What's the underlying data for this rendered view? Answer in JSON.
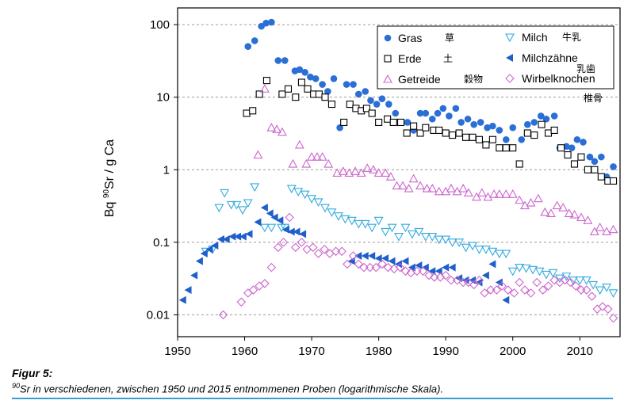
{
  "chart_data": {
    "type": "scatter",
    "title": "",
    "xlabel": "",
    "ylabel_parts": {
      "pre": "Bq ",
      "sup": "90",
      "post": "Sr / g Ca"
    },
    "y_scale": "log",
    "xlim": [
      1950,
      2016
    ],
    "ylim": [
      0.005,
      170
    ],
    "x_ticks": [
      1950,
      1960,
      1970,
      1980,
      1990,
      2000,
      2010
    ],
    "y_ticks": [
      {
        "value": 0.01,
        "label": "0.01"
      },
      {
        "value": 0.1,
        "label": "0.1"
      },
      {
        "value": 1,
        "label": "1"
      },
      {
        "value": 10,
        "label": "10"
      },
      {
        "value": 100,
        "label": "100"
      }
    ],
    "grid": "horizontal dashed",
    "legend_position": "top-right",
    "series": [
      {
        "key": "gras",
        "name": "Gras",
        "name_cjk": "草",
        "marker": "circle",
        "color": "#2b6fd6",
        "x": [
          1960.5,
          1961.5,
          1962.5,
          1963.2,
          1964.0,
          1965.0,
          1966.0,
          1967.5,
          1968.2,
          1969.0,
          1969.8,
          1970.6,
          1971.6,
          1972.4,
          1973.3,
          1974.2,
          1975.2,
          1976.2,
          1977.0,
          1978.0,
          1978.8,
          1979.7,
          1980.5,
          1981.5,
          1982.5,
          1983.5,
          1984.3,
          1985.2,
          1986.2,
          1987.0,
          1988.0,
          1988.8,
          1989.6,
          1990.5,
          1991.5,
          1992.3,
          1993.3,
          1994.2,
          1995.2,
          1996.2,
          1997.0,
          1998.0,
          1999.0,
          2000.0,
          2001.3,
          2002.2,
          2003.2,
          2004.2,
          2005.0,
          2006.2,
          2007.0,
          2008.0,
          2008.8,
          2009.6,
          2010.5,
          2011.5,
          2012.2,
          2013.2,
          2014.0,
          2015.0
        ],
        "y": [
          50,
          60,
          95,
          105,
          108,
          32,
          32,
          23,
          24,
          22,
          19,
          18,
          15,
          12,
          18,
          3.8,
          15,
          15,
          11,
          12,
          9,
          8,
          9.5,
          8,
          6,
          4.5,
          4.5,
          3.5,
          6,
          6,
          5,
          6,
          7,
          5.5,
          7,
          4.5,
          5,
          4.2,
          4.5,
          3.8,
          4,
          3.5,
          2.6,
          3.8,
          2.6,
          4.2,
          4.5,
          5.5,
          5,
          5.5,
          2.0,
          2.1,
          2.0,
          2.6,
          2.4,
          1.5,
          1.3,
          1.5,
          0.8,
          1.1
        ]
      },
      {
        "key": "erde",
        "name": "Erde",
        "name_cjk": "土",
        "marker": "square",
        "color": "#000000",
        "x": [
          1960.3,
          1961.2,
          1962.2,
          1963.3,
          1965.6,
          1966.5,
          1967.6,
          1968.5,
          1969.4,
          1970.3,
          1971.1,
          1972.0,
          1973.0,
          1974.8,
          1975.7,
          1976.6,
          1977.4,
          1978.2,
          1979.0,
          1980.0,
          1981.3,
          1982.2,
          1983.3,
          1984.2,
          1985.2,
          1986.2,
          1987.0,
          1988.2,
          1989.0,
          1990.0,
          1991.0,
          1992.0,
          1993.0,
          1994.0,
          1995.0,
          1996.0,
          1997.0,
          1998.0,
          1999.0,
          2000.0,
          2001.0,
          2002.2,
          2003.2,
          2004.3,
          2005.3,
          2006.2,
          2007.2,
          2008.2,
          2009.2,
          2010.2,
          2011.2,
          2012.2,
          2013.2,
          2014.2,
          2015.0
        ],
        "y": [
          6,
          6.5,
          11,
          17,
          11,
          13,
          10,
          16,
          13,
          11,
          11,
          10,
          8,
          4.5,
          8,
          7,
          6.5,
          7,
          6,
          4.5,
          5,
          4.5,
          4.5,
          3.2,
          4,
          3.2,
          3.8,
          3.5,
          3.5,
          3.2,
          3.0,
          3.2,
          2.8,
          2.8,
          2.6,
          2.2,
          2.6,
          2.0,
          2.0,
          2.0,
          1.2,
          3.2,
          3.0,
          4.2,
          3.2,
          3.5,
          2.0,
          1.6,
          1.2,
          1.5,
          1.0,
          1.0,
          0.8,
          0.7,
          0.7
        ]
      },
      {
        "key": "getreide",
        "name": "Getreide",
        "name_cjk": "穀物",
        "marker": "triangle-up",
        "color": "#cc66cc",
        "x": [
          1962.0,
          1963.0,
          1964.0,
          1964.8,
          1965.6,
          1967.2,
          1968.2,
          1969.2,
          1970.0,
          1970.8,
          1971.6,
          1972.5,
          1973.8,
          1974.7,
          1975.6,
          1976.5,
          1977.4,
          1978.3,
          1979.2,
          1980.0,
          1981.0,
          1981.8,
          1982.7,
          1983.6,
          1984.5,
          1985.2,
          1986.2,
          1987.2,
          1988.0,
          1989.0,
          1990.0,
          1990.8,
          1991.7,
          1992.6,
          1993.4,
          1994.6,
          1995.4,
          1996.3,
          1997.2,
          1998.0,
          1999.0,
          2000.0,
          2001.0,
          2001.8,
          2002.7,
          2003.8,
          2004.8,
          2005.7,
          2006.6,
          2007.5,
          2008.4,
          2009.2,
          2010.2,
          2011.2,
          2012.2,
          2013.0,
          2014.0,
          2015.0
        ],
        "y": [
          1.6,
          13,
          3.8,
          3.6,
          3.3,
          1.2,
          2.2,
          1.2,
          1.5,
          1.5,
          1.5,
          1.2,
          0.9,
          0.95,
          0.9,
          0.95,
          0.9,
          1.05,
          1.0,
          0.9,
          0.9,
          0.8,
          0.6,
          0.6,
          0.55,
          0.75,
          0.6,
          0.55,
          0.55,
          0.5,
          0.5,
          0.55,
          0.5,
          0.55,
          0.48,
          0.42,
          0.48,
          0.42,
          0.46,
          0.46,
          0.46,
          0.46,
          0.38,
          0.32,
          0.35,
          0.4,
          0.26,
          0.25,
          0.32,
          0.3,
          0.25,
          0.24,
          0.22,
          0.2,
          0.14,
          0.16,
          0.14,
          0.15
        ]
      },
      {
        "key": "milch",
        "name": "Milch",
        "name_cjk": "牛乳",
        "marker": "triangle-down",
        "color": "#33aadd",
        "x": [
          1954.2,
          1955.2,
          1956.2,
          1957.0,
          1958.0,
          1958.8,
          1959.7,
          1960.5,
          1961.5,
          1963.0,
          1964.0,
          1965.5,
          1966.0,
          1967.0,
          1968.0,
          1969.0,
          1970.0,
          1971.0,
          1972.0,
          1973.0,
          1974.0,
          1975.0,
          1976.0,
          1977.0,
          1978.0,
          1979.0,
          1980.0,
          1981.0,
          1982.0,
          1983.0,
          1984.0,
          1985.0,
          1986.0,
          1987.0,
          1988.0,
          1989.0,
          1990.0,
          1991.0,
          1992.0,
          1993.0,
          1994.0,
          1995.0,
          1996.0,
          1997.0,
          1998.0,
          1999.0,
          2000.0,
          2001.0,
          2002.0,
          2003.0,
          2004.0,
          2005.0,
          2006.0,
          2007.0,
          2008.0,
          2009.0,
          2010.0,
          2011.0,
          2012.0,
          2013.0,
          2014.0,
          2015.0
        ],
        "y": [
          0.075,
          0.08,
          0.3,
          0.48,
          0.33,
          0.33,
          0.28,
          0.35,
          0.58,
          0.16,
          0.16,
          0.16,
          0.16,
          0.55,
          0.5,
          0.46,
          0.4,
          0.36,
          0.3,
          0.26,
          0.23,
          0.21,
          0.2,
          0.18,
          0.18,
          0.16,
          0.2,
          0.14,
          0.16,
          0.12,
          0.16,
          0.13,
          0.14,
          0.12,
          0.12,
          0.11,
          0.11,
          0.1,
          0.1,
          0.085,
          0.09,
          0.08,
          0.08,
          0.075,
          0.07,
          0.07,
          0.04,
          0.045,
          0.044,
          0.042,
          0.04,
          0.036,
          0.038,
          0.032,
          0.034,
          0.03,
          0.03,
          0.03,
          0.026,
          0.022,
          0.024,
          0.02
        ]
      },
      {
        "key": "milchzaehne",
        "name": "Milchzähne",
        "name_cjk": "乳歯",
        "marker": "triangle-left",
        "color": "#1e5fcc",
        "x": [
          1950.8,
          1951.6,
          1952.5,
          1953.3,
          1954.0,
          1954.8,
          1955.6,
          1956.5,
          1957.3,
          1958.2,
          1959.0,
          1959.8,
          1960.7,
          1962.0,
          1963.0,
          1963.8,
          1964.5,
          1965.3,
          1966.2,
          1967.0,
          1967.8,
          1968.7,
          1976.0,
          1977.0,
          1978.0,
          1979.0,
          1980.0,
          1981.0,
          1982.0,
          1983.0,
          1984.0,
          1985.0,
          1986.0,
          1987.0,
          1988.0,
          1989.0,
          1990.0,
          1991.0,
          1992.0,
          1993.0,
          1994.0,
          1995.0,
          1996.0,
          1997.0,
          1998.0,
          1999.0
        ],
        "y": [
          0.016,
          0.022,
          0.035,
          0.055,
          0.07,
          0.08,
          0.09,
          0.11,
          0.11,
          0.12,
          0.12,
          0.12,
          0.13,
          0.19,
          0.3,
          0.25,
          0.22,
          0.2,
          0.15,
          0.14,
          0.14,
          0.13,
          0.055,
          0.065,
          0.065,
          0.065,
          0.06,
          0.06,
          0.055,
          0.05,
          0.055,
          0.045,
          0.048,
          0.045,
          0.04,
          0.04,
          0.045,
          0.045,
          0.032,
          0.03,
          0.03,
          0.028,
          0.035,
          0.05,
          0.028,
          0.016
        ]
      },
      {
        "key": "wirbelknochen",
        "name": "Wirbelknochen",
        "name_cjk": "椎骨",
        "marker": "diamond",
        "color": "#cc66cc",
        "x": [
          1956.8,
          1959.5,
          1960.5,
          1961.3,
          1962.2,
          1963.0,
          1964.0,
          1965.0,
          1965.8,
          1966.7,
          1967.6,
          1968.5,
          1969.3,
          1970.2,
          1971.0,
          1971.9,
          1972.7,
          1973.6,
          1974.5,
          1975.3,
          1976.2,
          1977.0,
          1977.8,
          1978.7,
          1979.6,
          1980.5,
          1981.4,
          1982.3,
          1983.2,
          1984.0,
          1984.8,
          1985.7,
          1986.6,
          1987.5,
          1988.3,
          1989.2,
          1990.0,
          1990.8,
          1991.7,
          1992.6,
          1993.4,
          1994.2,
          1995.0,
          1995.8,
          1996.7,
          1997.6,
          1998.4,
          1999.3,
          2000.2,
          2001.0,
          2001.8,
          2002.7,
          2003.6,
          2004.5,
          2005.3,
          2006.2,
          2007.0,
          2007.8,
          2008.6,
          2009.4,
          2010.2,
          2011.0,
          2011.8,
          2012.6,
          2013.4,
          2014.2,
          2015.0
        ],
        "y": [
          0.01,
          0.015,
          0.02,
          0.022,
          0.025,
          0.027,
          0.045,
          0.085,
          0.1,
          0.22,
          0.085,
          0.1,
          0.08,
          0.085,
          0.07,
          0.08,
          0.07,
          0.075,
          0.075,
          0.05,
          0.065,
          0.05,
          0.045,
          0.045,
          0.045,
          0.05,
          0.045,
          0.043,
          0.045,
          0.04,
          0.038,
          0.04,
          0.04,
          0.035,
          0.033,
          0.033,
          0.035,
          0.03,
          0.03,
          0.028,
          0.028,
          0.026,
          0.03,
          0.02,
          0.022,
          0.022,
          0.025,
          0.022,
          0.02,
          0.028,
          0.022,
          0.02,
          0.028,
          0.022,
          0.025,
          0.03,
          0.028,
          0.03,
          0.028,
          0.025,
          0.022,
          0.022,
          0.018,
          0.012,
          0.013,
          0.012,
          0.009
        ]
      }
    ]
  },
  "caption": {
    "figure_label": "Figur 5:",
    "text_sup": "90",
    "text": "Sr in verschiedenen, zwischen 1950 und 2015 entnommenen Proben (logarithmische Skala).",
    "rule_color": "#3a9ad9"
  }
}
